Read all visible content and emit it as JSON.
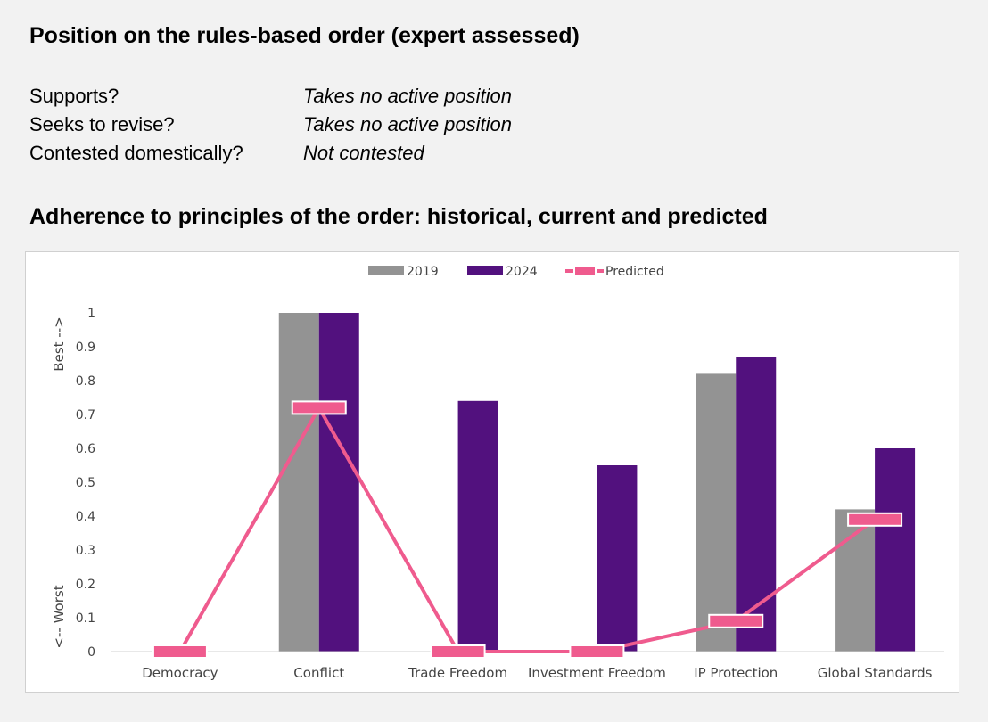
{
  "position": {
    "title": "Position on the rules-based order (expert assessed)",
    "rows": [
      {
        "question": "Supports?",
        "answer": "Takes no active position"
      },
      {
        "question": "Seeks to revise?",
        "answer": "Takes no active position"
      },
      {
        "question": "Contested domestically?",
        "answer": "Not contested"
      }
    ]
  },
  "chart_data": {
    "type": "bar",
    "title": "Adherence to principles of the order: historical, current and predicted",
    "categories": [
      "Democracy",
      "Conflict",
      "Trade Freedom",
      "Investment Freedom",
      "IP Protection",
      "Global Standards"
    ],
    "series": [
      {
        "name": "2019",
        "type": "bar",
        "color": "#939393",
        "values": [
          0,
          1.0,
          0,
          0,
          0.82,
          0.42
        ]
      },
      {
        "name": "2024",
        "type": "bar",
        "color": "#52117e",
        "values": [
          0,
          1.0,
          0.74,
          0.55,
          0.87,
          0.6
        ]
      },
      {
        "name": "Predicted",
        "type": "line",
        "color": "#ef5b8e",
        "values": [
          0,
          0.72,
          0,
          0,
          0.09,
          0.39
        ]
      }
    ],
    "ylim": [
      0,
      1
    ],
    "yticks": [
      "0",
      "0.1",
      "0.2",
      "0.3",
      "0.4",
      "0.5",
      "0.6",
      "0.7",
      "0.8",
      "0.9",
      "1"
    ],
    "axis_annotations": {
      "top": "Best -->",
      "bottom": "<-- Worst"
    },
    "legend_position": "top",
    "grid": false
  }
}
